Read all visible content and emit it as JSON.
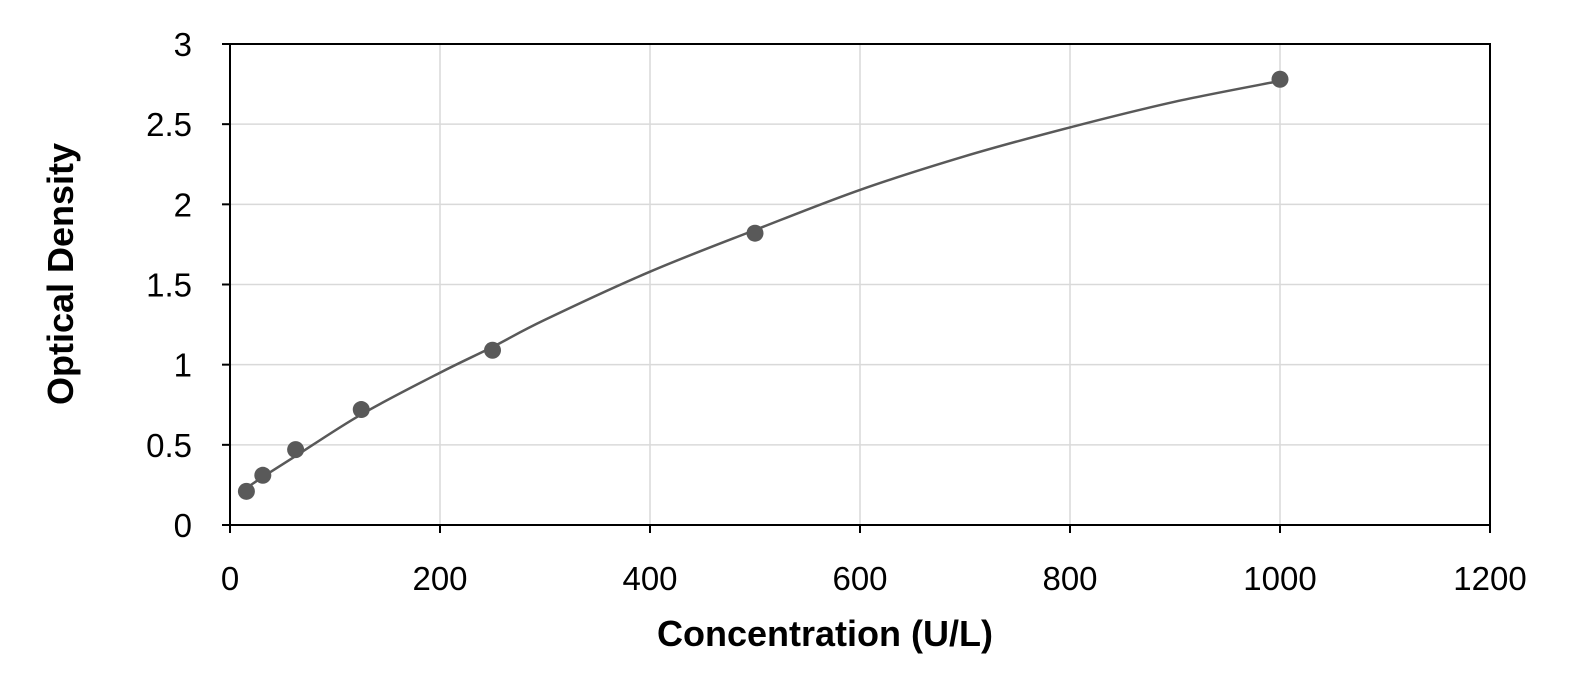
{
  "chart_data": {
    "type": "scatter",
    "title": "",
    "xlabel": "Concentration (U/L)",
    "ylabel": "Optical Density",
    "xlim": [
      0,
      1200
    ],
    "ylim": [
      0,
      3
    ],
    "x_ticks": [
      0,
      200,
      400,
      600,
      800,
      1000,
      1200
    ],
    "y_ticks": [
      0,
      0.5,
      1,
      1.5,
      2,
      2.5,
      3
    ],
    "x_tick_labels": [
      "0",
      "200",
      "400",
      "600",
      "800",
      "1000",
      "1200"
    ],
    "y_tick_labels": [
      "0",
      "0.5",
      "1",
      "1.5",
      "2",
      "2.5",
      "3"
    ],
    "grid": true,
    "legend": "none",
    "points": {
      "x": [
        15.625,
        31.25,
        62.5,
        125,
        250,
        500,
        1000
      ],
      "y": [
        0.21,
        0.31,
        0.47,
        0.72,
        1.09,
        1.82,
        2.78
      ]
    },
    "trendline": {
      "x": [
        15.625,
        31.25,
        62.5,
        125,
        200,
        250,
        300,
        400,
        500,
        600,
        700,
        800,
        900,
        1000
      ],
      "y": [
        0.23,
        0.3,
        0.43,
        0.69,
        0.95,
        1.11,
        1.28,
        1.58,
        1.84,
        2.09,
        2.3,
        2.48,
        2.64,
        2.77
      ]
    },
    "colors": {
      "marker": "#595959",
      "line": "#595959",
      "grid": "#d9d9d9",
      "axis": "#000000"
    }
  }
}
